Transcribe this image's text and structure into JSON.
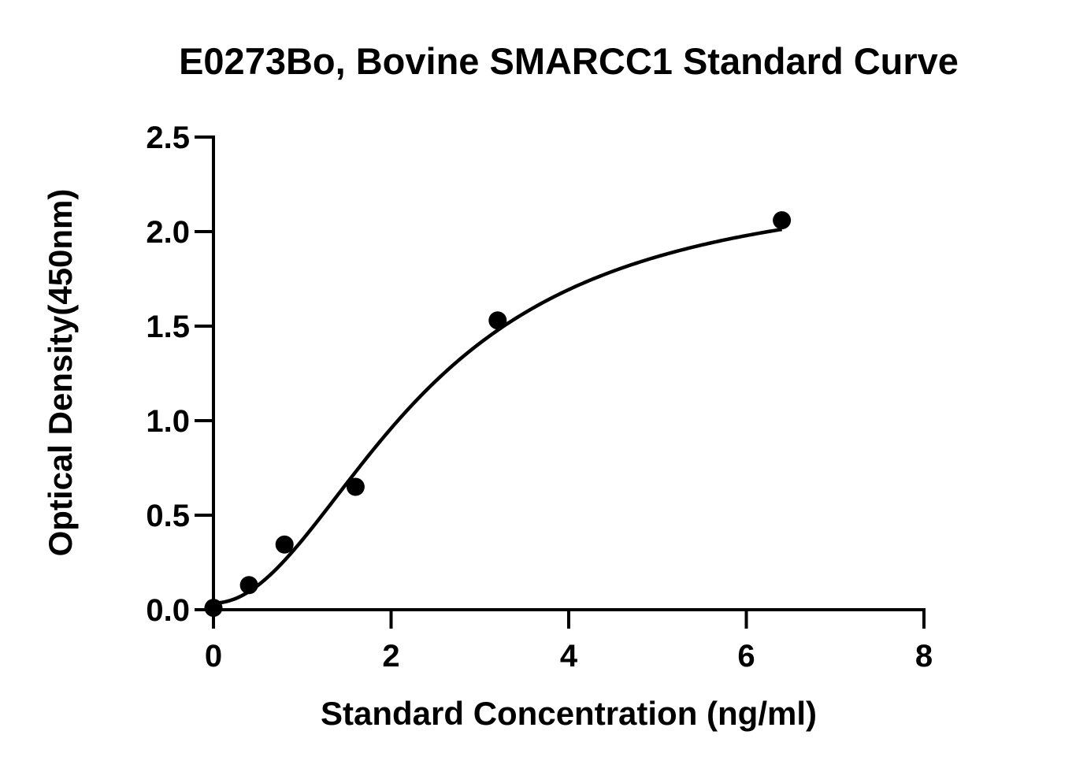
{
  "chart_data": {
    "type": "scatter",
    "title": "E0273Bo, Bovine SMARCC1 Standard Curve",
    "xlabel": "Standard Concentration (ng/ml)",
    "ylabel": "Optical Density(450nm)",
    "xlim": [
      0,
      8
    ],
    "ylim": [
      0,
      2.5
    ],
    "x_ticks": [
      0,
      2,
      4,
      6,
      8
    ],
    "x_tick_labels": [
      "0",
      "2",
      "4",
      "6",
      "8"
    ],
    "y_ticks": [
      0,
      0.5,
      1.0,
      1.5,
      2.0,
      2.5
    ],
    "y_tick_labels": [
      "0.0",
      "0.5",
      "1.0",
      "1.5",
      "2.0",
      "2.5"
    ],
    "grid": false,
    "legend": false,
    "series": [
      {
        "points": [
          {
            "x": 0,
            "y": 0.01
          },
          {
            "x": 0.4,
            "y": 0.13
          },
          {
            "x": 0.8,
            "y": 0.345
          },
          {
            "x": 1.6,
            "y": 0.65
          },
          {
            "x": 3.2,
            "y": 1.53
          },
          {
            "x": 6.4,
            "y": 2.06
          }
        ],
        "fit": {
          "type": "four-parameter-logistic",
          "min": 0.035,
          "max": 2.29,
          "ec50": 2.4,
          "hill": 2.0
        },
        "color": "#000000"
      }
    ]
  }
}
